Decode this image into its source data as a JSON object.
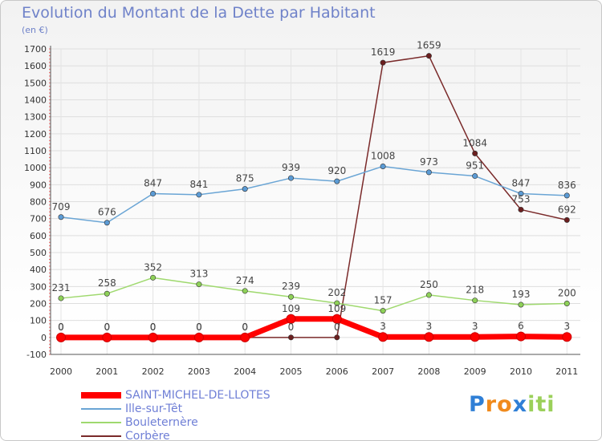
{
  "chart_data": {
    "type": "line",
    "title": "Evolution du Montant de la Dette par Habitant",
    "subtitle": "(en €)",
    "xlabel": "",
    "ylabel": "",
    "ylim": [
      -100,
      1700
    ],
    "yticks": [
      -100,
      0,
      100,
      200,
      300,
      400,
      500,
      600,
      700,
      800,
      900,
      1000,
      1100,
      1200,
      1300,
      1400,
      1500,
      1600,
      1700
    ],
    "categories": [
      "2000",
      "2001",
      "2002",
      "2003",
      "2004",
      "2005",
      "2006",
      "2007",
      "2008",
      "2009",
      "2010",
      "2011"
    ],
    "grid": true,
    "legend_position": "bottom-left",
    "series": [
      {
        "name": "SAINT-MICHEL-DE-LLOTES",
        "color": "#ff0000",
        "values": [
          0,
          0,
          0,
          0,
          0,
          109,
          109,
          3,
          3,
          3,
          6,
          3
        ]
      },
      {
        "name": "Ille-sur-Têt",
        "color": "#6aa5d5",
        "values": [
          709,
          676,
          847,
          841,
          875,
          939,
          920,
          1008,
          973,
          951,
          847,
          836
        ]
      },
      {
        "name": "Bouleternère",
        "color": "#9fd96e",
        "values": [
          231,
          258,
          352,
          313,
          274,
          239,
          202,
          157,
          250,
          218,
          193,
          200
        ]
      },
      {
        "name": "Corbère",
        "color": "#7a2a2a",
        "values": [
          0,
          0,
          0,
          0,
          0,
          0,
          0,
          1619,
          1659,
          1084,
          753,
          692
        ]
      }
    ]
  },
  "logo": {
    "text": "Proxiti"
  }
}
